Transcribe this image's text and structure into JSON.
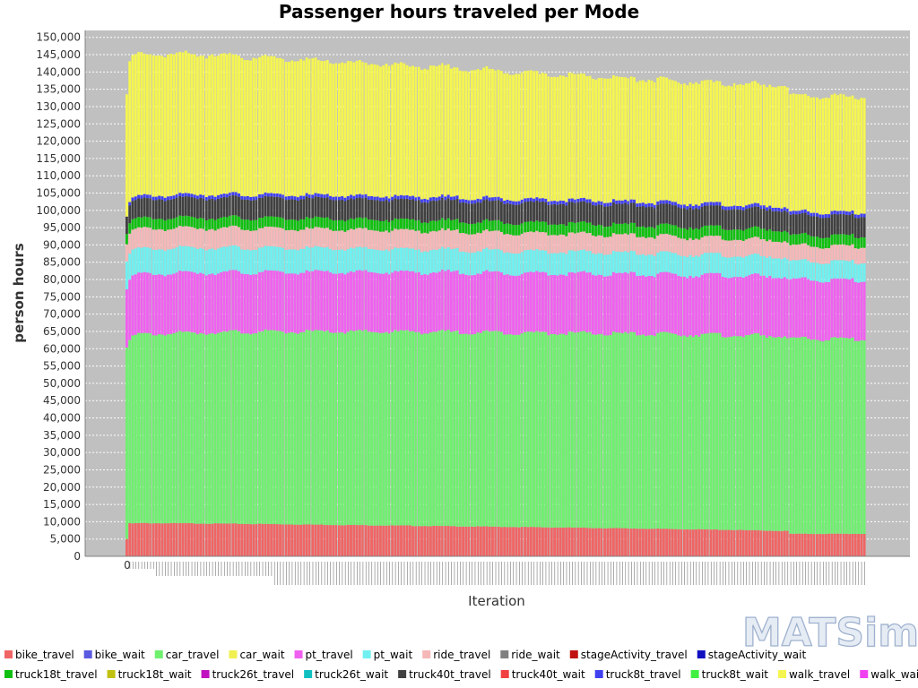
{
  "logo_text": "MATSim",
  "chart_data": {
    "type": "bar",
    "stacked": true,
    "title": "Passenger hours traveled per Mode",
    "xlabel": "Iteration",
    "ylabel": "person hours",
    "ylim": [
      0,
      152000
    ],
    "yticks": [
      0,
      5000,
      10000,
      15000,
      20000,
      25000,
      30000,
      35000,
      40000,
      45000,
      50000,
      55000,
      60000,
      65000,
      70000,
      75000,
      80000,
      85000,
      90000,
      95000,
      100000,
      105000,
      110000,
      115000,
      120000,
      125000,
      130000,
      135000,
      140000,
      145000,
      150000
    ],
    "grid": true,
    "legend_position": "bottom",
    "x_range": [
      0,
      500
    ],
    "x_first_label": "0",
    "iteration_step": 2,
    "series_profiles_note_free": true,
    "series": [
      {
        "name": "bike_travel",
        "color": "#f06565",
        "x": [
          0,
          1,
          3,
          10,
          50,
          100,
          200,
          300,
          400,
          449,
          450,
          500
        ],
        "values": [
          5000,
          9500,
          9500,
          9600,
          9500,
          9300,
          8800,
          8300,
          7700,
          7300,
          6500,
          6500
        ]
      },
      {
        "name": "bike_wait",
        "color": "#5a5ae0",
        "x": [
          0,
          500
        ],
        "values": [
          0,
          0
        ]
      },
      {
        "name": "car_travel",
        "color": "#6ff06f",
        "x": [
          0,
          1,
          3,
          10,
          50,
          100,
          200,
          300,
          400,
          449,
          450,
          500
        ],
        "values": [
          56000,
          53000,
          54000,
          54500,
          55200,
          55600,
          56100,
          56200,
          56300,
          56300,
          56300,
          56300
        ]
      },
      {
        "name": "car_wait",
        "color": "#f0f050",
        "x": [
          0,
          500
        ],
        "values": [
          0,
          0
        ]
      },
      {
        "name": "pt_travel",
        "color": "#f060f0",
        "x": [
          0,
          1,
          3,
          10,
          50,
          100,
          200,
          300,
          400,
          449,
          450,
          500
        ],
        "values": [
          17000,
          17500,
          17500,
          17400,
          17300,
          17200,
          17200,
          17200,
          17200,
          17200,
          17000,
          17000
        ]
      },
      {
        "name": "pt_wait",
        "color": "#70f0f0",
        "x": [
          0,
          1,
          3,
          10,
          50,
          100,
          200,
          300,
          400,
          449,
          450,
          500
        ],
        "values": [
          8000,
          7500,
          7500,
          7300,
          7200,
          7000,
          6600,
          6300,
          5900,
          5600,
          5300,
          5300
        ]
      },
      {
        "name": "ride_travel",
        "color": "#f5b8b8",
        "x": [
          0,
          1,
          3,
          10,
          50,
          100,
          200,
          300,
          400,
          449,
          450,
          500
        ],
        "values": [
          5000,
          5800,
          5800,
          5800,
          5700,
          5600,
          5400,
          5200,
          4900,
          4800,
          4500,
          4500
        ]
      },
      {
        "name": "ride_wait",
        "color": "#808080",
        "x": [
          0,
          500
        ],
        "values": [
          0,
          0
        ]
      },
      {
        "name": "stageActivity_travel",
        "color": "#c01010",
        "x": [
          0,
          500
        ],
        "values": [
          0,
          0
        ]
      },
      {
        "name": "stageActivity_wait",
        "color": "#1010c0",
        "x": [
          0,
          500
        ],
        "values": [
          0,
          0
        ]
      },
      {
        "name": "truck18t_travel",
        "color": "#10c010",
        "x": [
          0,
          1,
          3,
          10,
          50,
          100,
          200,
          300,
          400,
          449,
          450,
          500
        ],
        "values": [
          3000,
          3000,
          3000,
          3000,
          3000,
          3000,
          3000,
          3000,
          3000,
          3000,
          3000,
          3000
        ]
      },
      {
        "name": "truck18t_wait",
        "color": "#c0c010",
        "x": [
          0,
          500
        ],
        "values": [
          0,
          0
        ]
      },
      {
        "name": "truck26t_travel",
        "color": "#c010c0",
        "x": [
          0,
          500
        ],
        "values": [
          0,
          0
        ]
      },
      {
        "name": "truck26t_wait",
        "color": "#10c0c0",
        "x": [
          0,
          500
        ],
        "values": [
          0,
          0
        ]
      },
      {
        "name": "truck40t_travel",
        "color": "#404040",
        "x": [
          0,
          1,
          3,
          10,
          50,
          100,
          200,
          300,
          400,
          449,
          450,
          500
        ],
        "values": [
          5000,
          5000,
          5200,
          5500,
          5700,
          5800,
          5800,
          5800,
          5800,
          5800,
          5800,
          5800
        ]
      },
      {
        "name": "truck40t_wait",
        "color": "#f04040",
        "x": [
          0,
          500
        ],
        "values": [
          0,
          0
        ]
      },
      {
        "name": "truck8t_travel",
        "color": "#4040f0",
        "x": [
          0,
          1,
          3,
          10,
          50,
          100,
          200,
          300,
          400,
          449,
          450,
          500
        ],
        "values": [
          0,
          1000,
          1000,
          1000,
          1000,
          1000,
          1000,
          1000,
          1000,
          1000,
          1000,
          1000
        ]
      },
      {
        "name": "truck8t_wait",
        "color": "#40f040",
        "x": [
          0,
          500
        ],
        "values": [
          0,
          0
        ]
      },
      {
        "name": "walk_travel",
        "color": "#f5f550",
        "x": [
          0,
          1,
          3,
          10,
          50,
          100,
          200,
          300,
          400,
          449,
          450,
          500
        ],
        "values": [
          35000,
          40000,
          41000,
          41000,
          40500,
          39400,
          37800,
          36000,
          35000,
          35000,
          33500,
          33500
        ]
      },
      {
        "name": "walk_wait",
        "color": "#f040f0",
        "x": [
          0,
          500
        ],
        "values": [
          0,
          0
        ]
      }
    ]
  }
}
